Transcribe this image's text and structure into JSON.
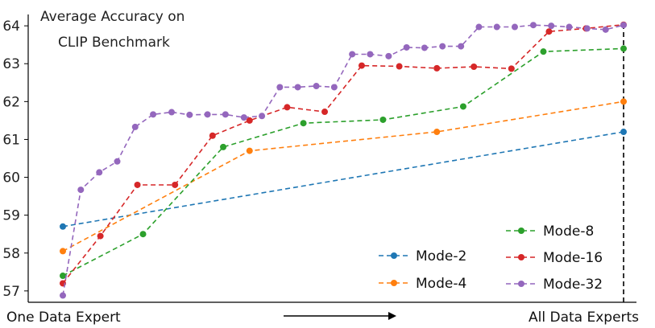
{
  "chart_data": {
    "type": "line",
    "title_lines": [
      "Average Accuracy on",
      "CLIP Benchmark"
    ],
    "xlabel_left": "One Data Expert",
    "xlabel_right": "All Data Experts",
    "arrow": "→",
    "ylim": [
      56.7,
      64.3
    ],
    "yticks": [
      57,
      58,
      59,
      60,
      61,
      62,
      63,
      64
    ],
    "xlim": [
      0,
      1
    ],
    "grid": false,
    "legend_position": "bottom-right",
    "series": [
      {
        "name": "Mode-2",
        "color": "#1f77b4",
        "x": [
          0.0,
          1.0
        ],
        "y": [
          58.7,
          61.2
        ]
      },
      {
        "name": "Mode-4",
        "color": "#ff7f0e",
        "x": [
          0.0,
          0.333,
          0.667,
          1.0
        ],
        "y": [
          58.05,
          60.7,
          61.2,
          62.0
        ]
      },
      {
        "name": "Mode-8",
        "color": "#2ca02c",
        "x": [
          0.0,
          0.143,
          0.286,
          0.429,
          0.571,
          0.714,
          0.857,
          1.0
        ],
        "y": [
          57.4,
          58.5,
          60.8,
          61.43,
          61.52,
          61.87,
          63.32,
          63.4
        ]
      },
      {
        "name": "Mode-16",
        "color": "#d62728",
        "x": [
          0.0,
          0.067,
          0.133,
          0.2,
          0.267,
          0.333,
          0.4,
          0.467,
          0.533,
          0.6,
          0.667,
          0.733,
          0.8,
          0.867,
          0.933,
          1.0
        ],
        "y": [
          57.2,
          58.45,
          59.8,
          59.8,
          61.1,
          61.5,
          61.85,
          61.73,
          62.95,
          62.93,
          62.88,
          62.92,
          62.87,
          63.85,
          63.93,
          64.03
        ]
      },
      {
        "name": "Mode-32",
        "color": "#9467bd",
        "x": [
          0.0,
          0.032,
          0.065,
          0.097,
          0.129,
          0.161,
          0.194,
          0.226,
          0.258,
          0.29,
          0.323,
          0.355,
          0.387,
          0.419,
          0.452,
          0.484,
          0.516,
          0.548,
          0.581,
          0.613,
          0.645,
          0.677,
          0.71,
          0.742,
          0.774,
          0.806,
          0.839,
          0.871,
          0.903,
          0.935,
          0.968,
          1.0
        ],
        "y": [
          56.88,
          59.67,
          60.13,
          60.42,
          61.33,
          61.66,
          61.72,
          61.65,
          61.66,
          61.66,
          61.58,
          61.62,
          62.38,
          62.38,
          62.41,
          62.38,
          63.25,
          63.25,
          63.2,
          63.43,
          63.42,
          63.46,
          63.46,
          63.97,
          63.97,
          63.97,
          64.02,
          64.0,
          63.97,
          63.93,
          63.9,
          64.02
        ]
      }
    ]
  }
}
